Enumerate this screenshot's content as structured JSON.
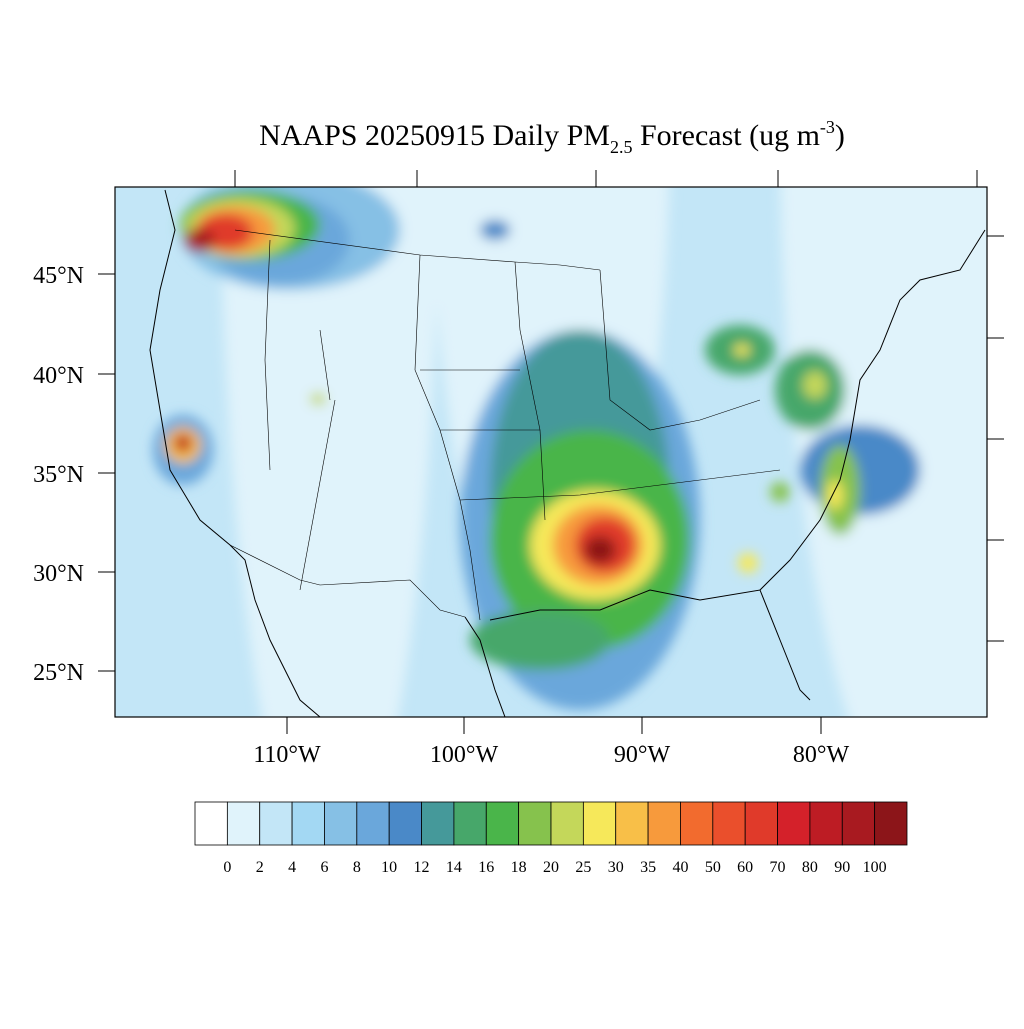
{
  "title": {
    "main": "NAAPS 20250915 Daily PM",
    "subscript": "2.5",
    "middle": " Forecast (ug m",
    "superscript": "-3",
    "end": ")"
  },
  "latitude_labels": [
    "45°N",
    "40°N",
    "35°N",
    "30°N",
    "25°N"
  ],
  "longitude_labels": [
    "110°W",
    "100°W",
    "90°W",
    "80°W"
  ],
  "colorbar": {
    "levels": [
      0,
      2,
      4,
      6,
      8,
      10,
      12,
      14,
      16,
      18,
      20,
      25,
      30,
      35,
      40,
      50,
      60,
      70,
      80,
      90,
      100
    ],
    "colors": [
      "#ffffff",
      "#e0f3fb",
      "#c3e6f7",
      "#a3d8f3",
      "#86c0e5",
      "#6aa7db",
      "#4a89c8",
      "#45999a",
      "#47a76a",
      "#4ab54a",
      "#86c24d",
      "#c4d75a",
      "#f6e85a",
      "#f8bf48",
      "#f79a3c",
      "#f26b2e",
      "#ea4f2c",
      "#e03a2a",
      "#d4212a",
      "#bd1c24",
      "#a81a20",
      "#8c1519"
    ]
  }
}
